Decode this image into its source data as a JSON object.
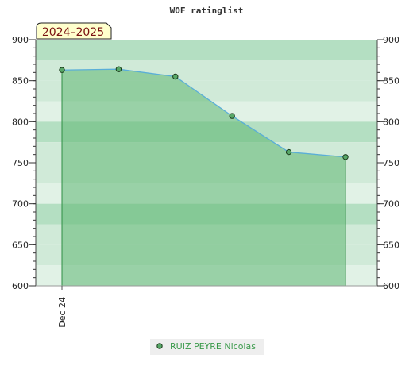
{
  "chart_data": {
    "type": "area",
    "title": "WOF ratinglist",
    "season_label": "2024–2025",
    "ylim": [
      600,
      900
    ],
    "yticks": [
      600,
      650,
      700,
      750,
      800,
      850,
      900
    ],
    "xtick_labels": [
      "Dec 24"
    ],
    "series": [
      {
        "name": "RUIZ PEYRE Nicolas",
        "values": [
          863,
          864,
          855,
          807,
          763,
          757
        ]
      }
    ],
    "grid": true,
    "legend_position": "bottom-center",
    "colors": {
      "band_dark": "#b4dfc2",
      "band_light": "#f1f8f2",
      "area_fill": "#5fb672",
      "area_opacity": 0.55,
      "line": "#5aaed8",
      "point_fill": "#58a868",
      "point_stroke": "#1a3a1a",
      "season_box_fill": "#ffffcc"
    }
  }
}
